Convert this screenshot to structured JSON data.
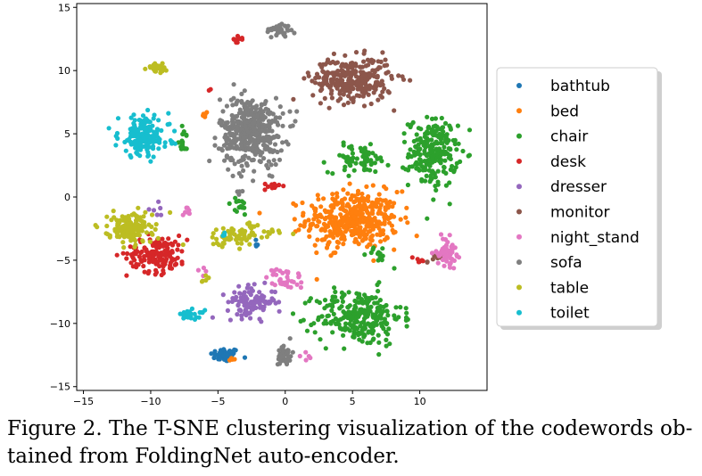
{
  "chart_data": {
    "type": "scatter",
    "title": "",
    "xlabel": "",
    "ylabel": "",
    "xlim": [
      -15.5,
      15
    ],
    "ylim": [
      -15.3,
      15.3
    ],
    "xticks": [
      -15,
      -10,
      -5,
      0,
      5,
      10
    ],
    "yticks": [
      -15,
      -10,
      -5,
      0,
      5,
      10,
      15
    ],
    "grid": false,
    "legend_position": "right",
    "series": [
      {
        "name": "bathtub",
        "color": "#1f77b4",
        "clusters": [
          [
            -4.5,
            -12.5,
            1.2,
            0.6,
            50
          ],
          [
            -2,
            -4,
            0.3,
            1.0,
            4
          ]
        ]
      },
      {
        "name": "bed",
        "color": "#ff7f0e",
        "clusters": [
          [
            5,
            -1.8,
            3.8,
            2.5,
            420
          ],
          [
            -6,
            6.5,
            0.5,
            0.4,
            5
          ],
          [
            -4,
            -12.8,
            0.3,
            0.3,
            4
          ]
        ]
      },
      {
        "name": "chair",
        "color": "#2ca02c",
        "clusters": [
          [
            11,
            3.5,
            2.0,
            3.0,
            220
          ],
          [
            5.5,
            3.0,
            2.5,
            1.2,
            70
          ],
          [
            5.5,
            -9.5,
            3.5,
            2.5,
            260
          ],
          [
            -3.5,
            -0.8,
            1.0,
            0.8,
            15
          ],
          [
            -7.5,
            4.5,
            0.6,
            1.2,
            15
          ],
          [
            7,
            -4.5,
            1.0,
            0.7,
            12
          ]
        ]
      },
      {
        "name": "desk",
        "color": "#d62728",
        "clusters": [
          [
            -9.5,
            -4.5,
            2.5,
            1.6,
            150
          ],
          [
            -3.5,
            12.5,
            0.4,
            0.3,
            12
          ],
          [
            -1,
            0.8,
            0.6,
            0.4,
            10
          ],
          [
            10,
            -5,
            0.6,
            0.3,
            6
          ],
          [
            -5.5,
            8.5,
            0.2,
            0.2,
            2
          ]
        ]
      },
      {
        "name": "dresser",
        "color": "#9467bd",
        "clusters": [
          [
            -2.5,
            -8.3,
            2.0,
            1.3,
            110
          ],
          [
            -9.5,
            -1,
            1.0,
            0.6,
            6
          ]
        ]
      },
      {
        "name": "monitor",
        "color": "#8c564b",
        "clusters": [
          [
            5,
            9.3,
            3.3,
            1.9,
            300
          ],
          [
            11,
            -4.8,
            0.9,
            0.5,
            8
          ]
        ]
      },
      {
        "name": "night_stand",
        "color": "#e377c2",
        "clusters": [
          [
            12,
            -4.3,
            0.8,
            1.2,
            60
          ],
          [
            0,
            -6.5,
            1.5,
            1.0,
            35
          ],
          [
            -7.5,
            -1,
            0.6,
            0.6,
            8
          ],
          [
            -6,
            -6,
            0.5,
            0.5,
            4
          ],
          [
            1.5,
            -12.8,
            0.5,
            0.4,
            5
          ]
        ]
      },
      {
        "name": "sofa",
        "color": "#7f7f7f",
        "clusters": [
          [
            -2.5,
            5.2,
            2.6,
            3.0,
            430
          ],
          [
            -0.5,
            13.2,
            1.0,
            0.6,
            40
          ],
          [
            0,
            -12.5,
            0.6,
            1.0,
            40
          ],
          [
            -3.5,
            0.5,
            0.3,
            0.3,
            4
          ]
        ]
      },
      {
        "name": "table",
        "color": "#bcbd22",
        "clusters": [
          [
            -11.5,
            -2.5,
            1.8,
            1.3,
            160
          ],
          [
            -3.5,
            -3.0,
            3.0,
            1.0,
            80
          ],
          [
            -9.5,
            10.2,
            0.8,
            0.4,
            30
          ],
          [
            -6,
            -6.5,
            0.6,
            0.5,
            5
          ]
        ]
      },
      {
        "name": "toilet",
        "color": "#17becf",
        "clusters": [
          [
            -10.5,
            4.8,
            2.1,
            1.8,
            170
          ],
          [
            -7,
            -9.3,
            1.1,
            0.4,
            25
          ],
          [
            -4.5,
            -3,
            0.3,
            0.3,
            3
          ]
        ]
      }
    ]
  },
  "caption": {
    "line1": "Figure 2. The T-SNE clustering visualization of the codewords ob-",
    "line2": "tained from FoldingNet auto-encoder."
  }
}
